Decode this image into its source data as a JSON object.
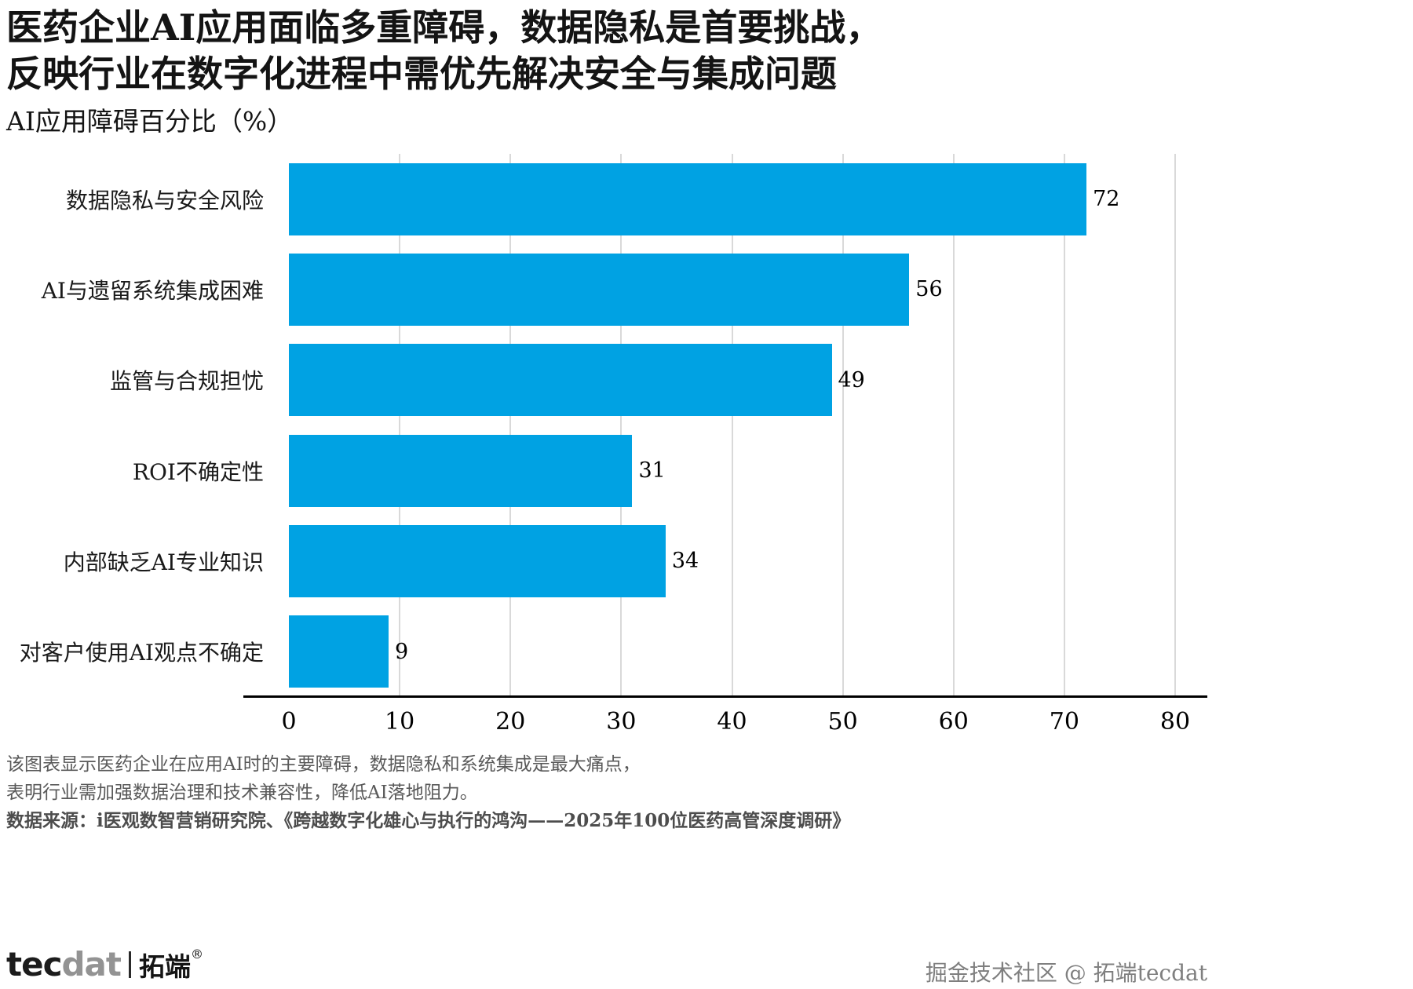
{
  "title": {
    "line1": "医药企业AI应用面临多重障碍，数据隐私是首要挑战，",
    "line2": "反映行业在数字化进程中需优先解决安全与集成问题",
    "subtitle": "AI应用障碍百分比（%）"
  },
  "chart_data": {
    "type": "bar",
    "orientation": "horizontal",
    "title": "AI应用障碍百分比（%）",
    "categories": [
      "数据隐私与安全风险",
      "AI与遗留系统集成困难",
      "监管与合规担忧",
      "ROI不确定性",
      "内部缺乏AI专业知识",
      "对客户使用AI观点不确定"
    ],
    "values": [
      72,
      56,
      49,
      31,
      34,
      9
    ],
    "xlabel": "",
    "ylabel": "",
    "xlim": [
      0,
      80
    ],
    "xticks": [
      0,
      10,
      20,
      30,
      40,
      50,
      60,
      70,
      80
    ],
    "grid": true,
    "legend": false,
    "bar_color": "#00a2e3"
  },
  "footer": {
    "note_line1": "该图表显示医药企业在应用AI时的主要障碍，数据隐私和系统集成是最大痛点，",
    "note_line2": "表明行业需加强数据治理和技术兼容性，降低AI落地阻力。",
    "source": "数据来源：i医观数智营销研究院、《跨越数字化雄心与执行的鸿沟——2025年100位医药高管深度调研》"
  },
  "branding": {
    "logo_tec": "tec",
    "logo_dat": "dat",
    "logo_cn": "拓端",
    "logo_reg": "®",
    "watermark": "掘金技术社区 @ 拓端tecdat"
  }
}
